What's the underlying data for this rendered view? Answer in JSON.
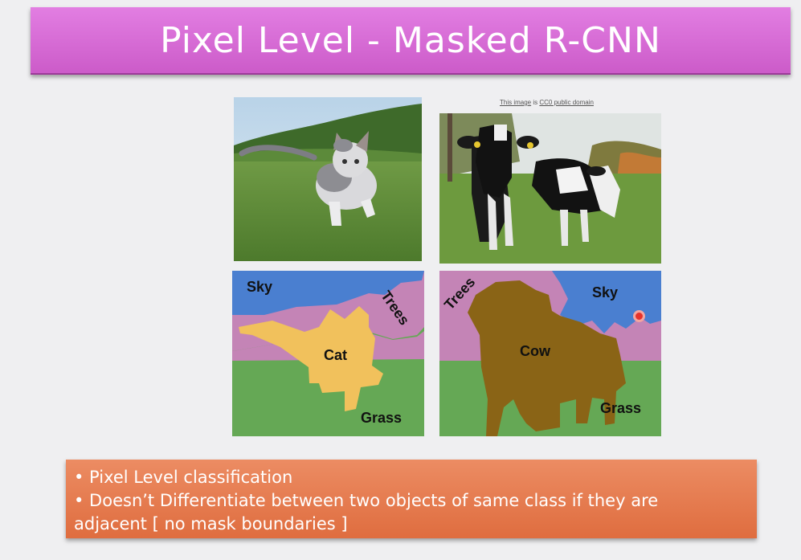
{
  "title": "Pixel Level - Masked R-CNN",
  "credit": {
    "link1": "This image",
    "sep": " is ",
    "link2": "CC0 public domain"
  },
  "cat_labels": {
    "sky": "Sky",
    "trees": "Trees",
    "cat": "Cat",
    "grass": "Grass"
  },
  "cow_labels": {
    "trees": "Trees",
    "sky": "Sky",
    "cow": "Cow",
    "grass": "Grass"
  },
  "bullets": {
    "line1": "• Pixel Level classification",
    "line2": "• Doesn’t Differentiate between two objects of same class if they are",
    "line3": "adjacent [ no mask boundaries ]"
  },
  "colors": {
    "title_bg": "#d96ad6",
    "bullet_bg": "#e67b4f",
    "sky": "#4a7fd0",
    "trees": "#c484b6",
    "grass": "#65a855",
    "cat": "#f1c15c",
    "cow": "#8a6416"
  }
}
